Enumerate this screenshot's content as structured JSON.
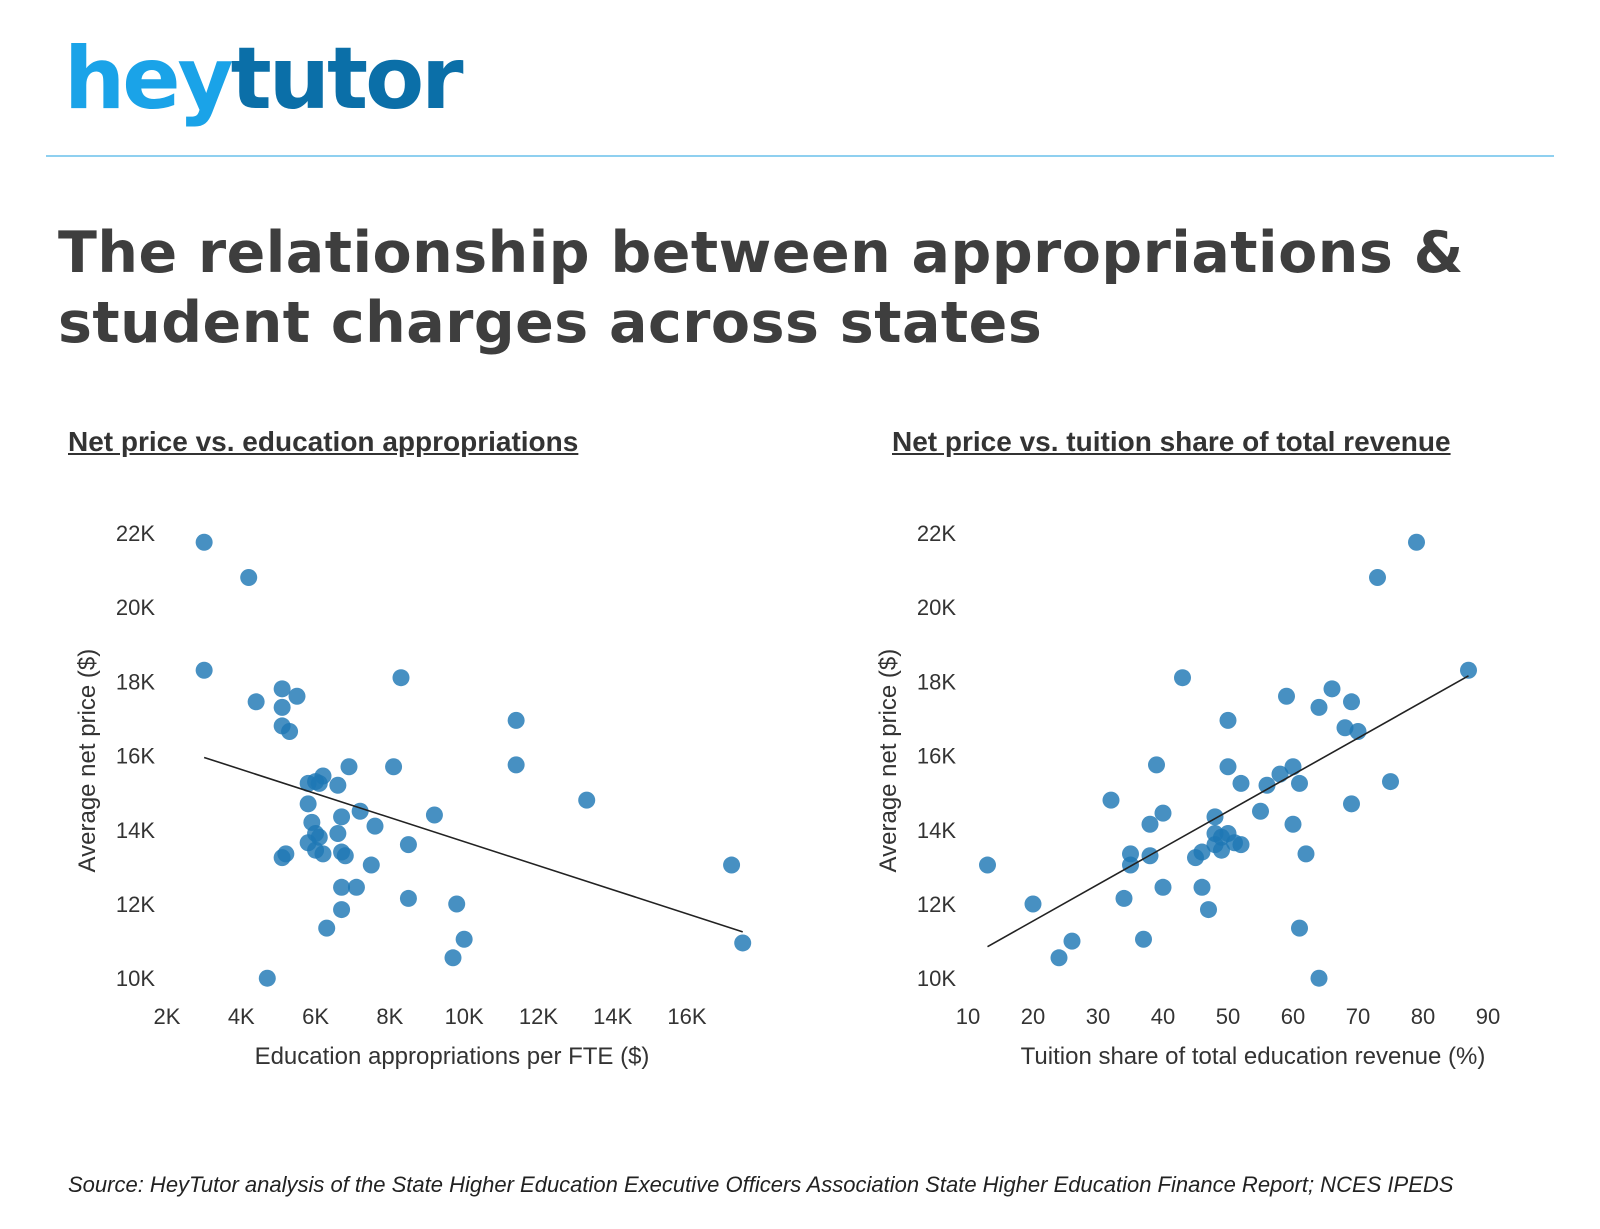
{
  "brand": {
    "logo_part1": "hey",
    "logo_part2": "tutor",
    "color_primary": "#1aa3e8",
    "color_secondary": "#0b6fa8"
  },
  "title": "The relationship between appropriations & student charges across states",
  "source": "Source: HeyTutor analysis of the State Higher Education Executive Officers Association State Higher Education Finance Report; NCES IPEDS",
  "colors": {
    "point": "#1f77b4",
    "trendline": "#222222"
  },
  "chart_data": [
    {
      "type": "scatter",
      "title": "Net price vs. education appropriations",
      "xlabel": "Education appropriations per FTE ($)",
      "ylabel": "Average net price ($)",
      "xlim": [
        2000,
        17800
      ],
      "ylim": [
        9500,
        22500
      ],
      "x_ticks": [
        2000,
        4000,
        6000,
        8000,
        10000,
        12000,
        14000,
        16000
      ],
      "x_tick_labels": [
        "2K",
        "4K",
        "6K",
        "8K",
        "10K",
        "12K",
        "14K",
        "16K"
      ],
      "y_ticks": [
        10000,
        12000,
        14000,
        16000,
        18000,
        20000,
        22000
      ],
      "y_tick_labels": [
        "10K",
        "12K",
        "14K",
        "16K",
        "18K",
        "20K",
        "22K"
      ],
      "trendline": {
        "x": [
          3000,
          17500
        ],
        "y": [
          15950,
          11250
        ]
      },
      "points": [
        [
          3000,
          21750
        ],
        [
          4200,
          20800
        ],
        [
          3000,
          18300
        ],
        [
          4400,
          17450
        ],
        [
          5100,
          17800
        ],
        [
          5100,
          17300
        ],
        [
          5500,
          17600
        ],
        [
          5100,
          16800
        ],
        [
          5300,
          16650
        ],
        [
          8300,
          18100
        ],
        [
          11400,
          16950
        ],
        [
          11400,
          15750
        ],
        [
          13300,
          14800
        ],
        [
          17200,
          13050
        ],
        [
          17500,
          10950
        ],
        [
          5800,
          15250
        ],
        [
          6000,
          15300
        ],
        [
          6100,
          15250
        ],
        [
          6200,
          15450
        ],
        [
          6600,
          15200
        ],
        [
          6900,
          15700
        ],
        [
          8100,
          15700
        ],
        [
          5800,
          14700
        ],
        [
          5900,
          14200
        ],
        [
          6000,
          13900
        ],
        [
          6100,
          13800
        ],
        [
          5800,
          13650
        ],
        [
          6000,
          13450
        ],
        [
          6200,
          13350
        ],
        [
          5100,
          13250
        ],
        [
          5200,
          13350
        ],
        [
          6600,
          13900
        ],
        [
          6700,
          14350
        ],
        [
          7200,
          14500
        ],
        [
          7600,
          14100
        ],
        [
          6700,
          13400
        ],
        [
          6800,
          13300
        ],
        [
          7500,
          13050
        ],
        [
          9200,
          14400
        ],
        [
          8500,
          13600
        ],
        [
          6700,
          12450
        ],
        [
          7100,
          12450
        ],
        [
          6700,
          11850
        ],
        [
          6300,
          11350
        ],
        [
          8500,
          12150
        ],
        [
          9800,
          12000
        ],
        [
          10000,
          11050
        ],
        [
          9700,
          10550
        ],
        [
          4700,
          10000
        ]
      ]
    },
    {
      "type": "scatter",
      "title": "Net price vs. tuition share of total revenue",
      "xlabel": "Tuition share of total education revenue (%)",
      "ylabel": "Average net price ($)",
      "xlim": [
        10,
        90
      ],
      "ylim": [
        9500,
        22500
      ],
      "x_ticks": [
        10,
        20,
        30,
        40,
        50,
        60,
        70,
        80,
        90
      ],
      "x_tick_labels": [
        "10",
        "20",
        "30",
        "40",
        "50",
        "60",
        "70",
        "80",
        "90"
      ],
      "y_ticks": [
        10000,
        12000,
        14000,
        16000,
        18000,
        20000,
        22000
      ],
      "y_tick_labels": [
        "10K",
        "12K",
        "14K",
        "16K",
        "18K",
        "20K",
        "22K"
      ],
      "trendline": {
        "x": [
          13,
          87
        ],
        "y": [
          10850,
          18150
        ]
      },
      "points": [
        [
          79,
          21750
        ],
        [
          73,
          20800
        ],
        [
          87,
          18300
        ],
        [
          43,
          18100
        ],
        [
          66,
          17800
        ],
        [
          59,
          17600
        ],
        [
          64,
          17300
        ],
        [
          69,
          17450
        ],
        [
          68,
          16750
        ],
        [
          70,
          16650
        ],
        [
          50,
          16950
        ],
        [
          39,
          15750
        ],
        [
          50,
          15700
        ],
        [
          60,
          15700
        ],
        [
          58,
          15500
        ],
        [
          56,
          15200
        ],
        [
          52,
          15250
        ],
        [
          61,
          15250
        ],
        [
          75,
          15300
        ],
        [
          32,
          14800
        ],
        [
          69,
          14700
        ],
        [
          40,
          14450
        ],
        [
          55,
          14500
        ],
        [
          48,
          14350
        ],
        [
          38,
          14150
        ],
        [
          60,
          14150
        ],
        [
          48,
          13900
        ],
        [
          50,
          13900
        ],
        [
          49,
          13800
        ],
        [
          51,
          13650
        ],
        [
          52,
          13600
        ],
        [
          48,
          13600
        ],
        [
          49,
          13450
        ],
        [
          35,
          13350
        ],
        [
          38,
          13300
        ],
        [
          46,
          13400
        ],
        [
          45,
          13250
        ],
        [
          62,
          13350
        ],
        [
          35,
          13050
        ],
        [
          13,
          13050
        ],
        [
          40,
          12450
        ],
        [
          46,
          12450
        ],
        [
          34,
          12150
        ],
        [
          47,
          11850
        ],
        [
          20,
          12000
        ],
        [
          61,
          11350
        ],
        [
          37,
          11050
        ],
        [
          26,
          11000
        ],
        [
          24,
          10550
        ],
        [
          64,
          10000
        ]
      ]
    }
  ]
}
